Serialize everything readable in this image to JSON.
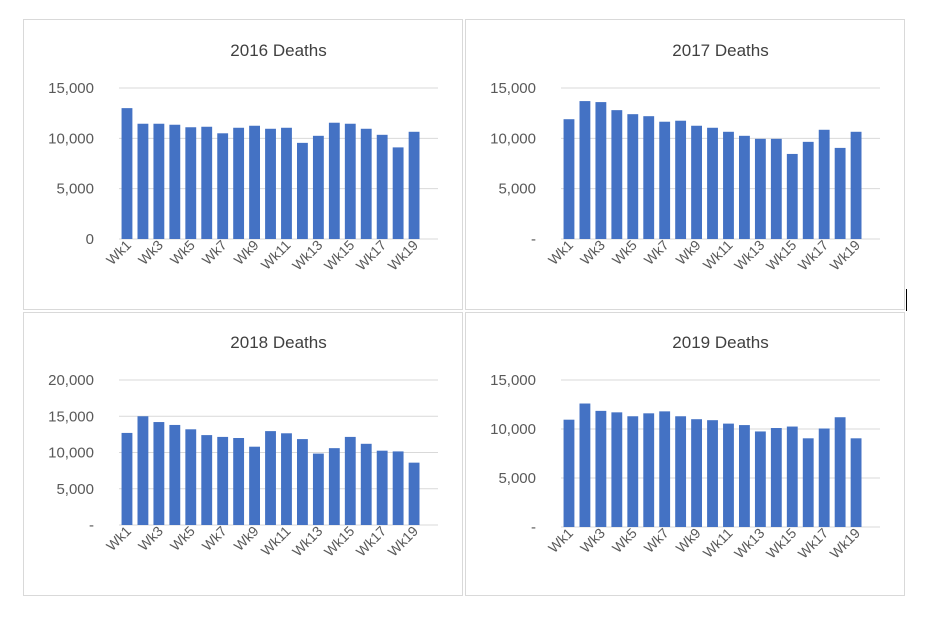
{
  "colors": {
    "bar": "#4472C4",
    "grid": "#d9d9d9",
    "text": "#595959",
    "title": "#404040"
  },
  "chart_data": [
    {
      "type": "bar",
      "title": "2016 Deaths",
      "xlabel": "",
      "ylabel": "",
      "categories": [
        "Wk1",
        "Wk2",
        "Wk3",
        "Wk4",
        "Wk5",
        "Wk6",
        "Wk7",
        "Wk8",
        "Wk9",
        "Wk10",
        "Wk11",
        "Wk12",
        "Wk13",
        "Wk14",
        "Wk15",
        "Wk16",
        "Wk17",
        "Wk18",
        "Wk19",
        "Wk20"
      ],
      "shown_tick_labels": [
        "Wk1",
        "Wk3",
        "Wk5",
        "Wk7",
        "Wk9",
        "Wk11",
        "Wk13",
        "Wk15",
        "Wk17",
        "Wk19"
      ],
      "values": [
        13000,
        11450,
        11450,
        11350,
        11100,
        11150,
        10500,
        11050,
        11250,
        10950,
        11050,
        9550,
        10250,
        11550,
        11450,
        10950,
        10350,
        9100,
        10650,
        0
      ],
      "ylim": [
        0,
        15000
      ],
      "yticks": [
        0,
        5000,
        10000,
        15000
      ],
      "ytick_labels": [
        "0",
        "5,000",
        "10,000",
        "15,000"
      ]
    },
    {
      "type": "bar",
      "title": "2017 Deaths",
      "xlabel": "",
      "ylabel": "",
      "categories": [
        "Wk1",
        "Wk2",
        "Wk3",
        "Wk4",
        "Wk5",
        "Wk6",
        "Wk7",
        "Wk8",
        "Wk9",
        "Wk10",
        "Wk11",
        "Wk12",
        "Wk13",
        "Wk14",
        "Wk15",
        "Wk16",
        "Wk17",
        "Wk18",
        "Wk19",
        "Wk20"
      ],
      "shown_tick_labels": [
        "Wk1",
        "Wk3",
        "Wk5",
        "Wk7",
        "Wk9",
        "Wk11",
        "Wk13",
        "Wk15",
        "Wk17",
        "Wk19"
      ],
      "values": [
        11900,
        13700,
        13600,
        12800,
        12400,
        12200,
        11650,
        11750,
        11250,
        11050,
        10650,
        10250,
        9950,
        9950,
        8450,
        9650,
        10850,
        9050,
        10650,
        0
      ],
      "ylim": [
        0,
        15000
      ],
      "yticks": [
        0,
        5000,
        10000,
        15000
      ],
      "ytick_labels": [
        "-",
        "5,000",
        "10,000",
        "15,000"
      ]
    },
    {
      "type": "bar",
      "title": "2018 Deaths",
      "xlabel": "",
      "ylabel": "",
      "categories": [
        "Wk1",
        "Wk2",
        "Wk3",
        "Wk4",
        "Wk5",
        "Wk6",
        "Wk7",
        "Wk8",
        "Wk9",
        "Wk10",
        "Wk11",
        "Wk12",
        "Wk13",
        "Wk14",
        "Wk15",
        "Wk16",
        "Wk17",
        "Wk18",
        "Wk19",
        "Wk20"
      ],
      "shown_tick_labels": [
        "Wk1",
        "Wk3",
        "Wk5",
        "Wk7",
        "Wk9",
        "Wk11",
        "Wk13",
        "Wk15",
        "Wk17",
        "Wk19"
      ],
      "values": [
        12700,
        15000,
        14200,
        13800,
        13200,
        12400,
        12150,
        12000,
        10800,
        12950,
        12650,
        11850,
        9850,
        10600,
        12150,
        11200,
        10250,
        10150,
        8600,
        0
      ],
      "ylim": [
        0,
        20000
      ],
      "yticks": [
        0,
        5000,
        10000,
        15000,
        20000
      ],
      "ytick_labels": [
        "-",
        "5,000",
        "10,000",
        "15,000",
        "20,000"
      ]
    },
    {
      "type": "bar",
      "title": "2019 Deaths",
      "xlabel": "",
      "ylabel": "",
      "categories": [
        "Wk1",
        "Wk2",
        "Wk3",
        "Wk4",
        "Wk5",
        "Wk6",
        "Wk7",
        "Wk8",
        "Wk9",
        "Wk10",
        "Wk11",
        "Wk12",
        "Wk13",
        "Wk14",
        "Wk15",
        "Wk16",
        "Wk17",
        "Wk18",
        "Wk19",
        "Wk20"
      ],
      "shown_tick_labels": [
        "Wk1",
        "Wk3",
        "Wk5",
        "Wk7",
        "Wk9",
        "Wk11",
        "Wk13",
        "Wk15",
        "Wk17",
        "Wk19"
      ],
      "values": [
        10950,
        12600,
        11850,
        11700,
        11300,
        11600,
        11800,
        11300,
        11000,
        10900,
        10550,
        10400,
        9750,
        10100,
        10250,
        9050,
        10050,
        11200,
        9050,
        0
      ],
      "ylim": [
        0,
        15000
      ],
      "yticks": [
        0,
        5000,
        10000,
        15000
      ],
      "ytick_labels": [
        "-",
        "5,000",
        "10,000",
        "15,000"
      ]
    }
  ]
}
